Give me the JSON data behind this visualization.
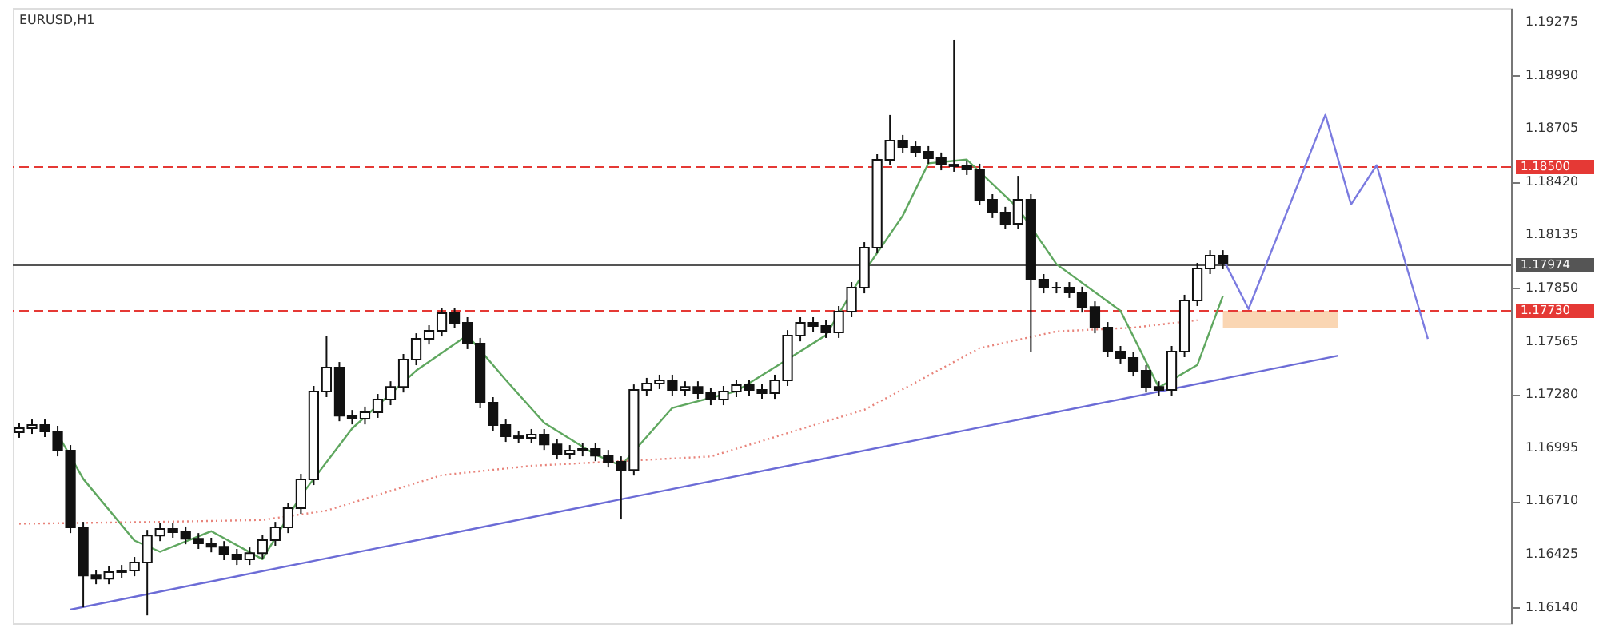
{
  "chart_data": {
    "type": "candlestick",
    "title": "EURUSD,H1",
    "color": "#111111",
    "grid": false,
    "tick_labels": "y",
    "categories": [
      null,
      null,
      null,
      null,
      null,
      null,
      null,
      null,
      null,
      null,
      null,
      null,
      null,
      null,
      null,
      null,
      null,
      null,
      null,
      null,
      null,
      null,
      null,
      null,
      null,
      null,
      null,
      null,
      null,
      null,
      null,
      null,
      null,
      null,
      null,
      null,
      null,
      null,
      null,
      null,
      null,
      null,
      null,
      null,
      null,
      null,
      null,
      null,
      null,
      null,
      null,
      null,
      null,
      null,
      null,
      null,
      null,
      null,
      null,
      null,
      null,
      null,
      null,
      null,
      null,
      null,
      null,
      null,
      null,
      null,
      null,
      null,
      null,
      null,
      null,
      null,
      null,
      null,
      null,
      null,
      null,
      null,
      null,
      null,
      null,
      null,
      null,
      null,
      null,
      null,
      null,
      null,
      null,
      null,
      null,
      null,
      null,
      null,
      null,
      null,
      null,
      null,
      null,
      null,
      null,
      null,
      null,
      null,
      null,
      null,
      null,
      null,
      null,
      null,
      null,
      null,
      null
    ],
    "ylim": [
      1.16057,
      1.19352
    ],
    "yticks": [
      {
        "value": 1.1614,
        "label": "1.16140"
      },
      1.16425,
      {
        "value": 1.1671,
        "label": "1.16710"
      },
      1.16995,
      {
        "value": 1.1728,
        "label": "1.17280"
      },
      1.17565,
      {
        "value": 1.1785,
        "label": "1.17850"
      },
      1.18135,
      {
        "value": 1.1842,
        "label": "1.18420"
      },
      1.18705,
      {
        "value": 1.1899,
        "label": "1.18990"
      },
      1.19275
    ],
    "ohlc": [
      [
        1.1708,
        1.17131,
        1.1705,
        1.17101
      ],
      [
        1.17101,
        1.17148,
        1.17071,
        1.17118
      ],
      [
        1.17118,
        1.17148,
        1.17054,
        1.17084
      ],
      [
        1.17084,
        1.17114,
        1.16951,
        1.16981
      ],
      [
        1.16981,
        1.17011,
        1.1654,
        1.1657
      ],
      [
        1.1657,
        1.166,
        1.16142,
        1.16313
      ],
      [
        1.16313,
        1.16343,
        1.16266,
        1.16296
      ],
      [
        1.16296,
        1.16361,
        1.16266,
        1.16331
      ],
      [
        1.16331,
        1.16369,
        1.16301,
        1.16339
      ],
      [
        1.16339,
        1.16412,
        1.16309,
        1.16382
      ],
      [
        1.16382,
        1.16557,
        1.16099,
        1.16527
      ],
      [
        1.16527,
        1.16592,
        1.16497,
        1.16562
      ],
      [
        1.16562,
        1.16592,
        1.16515,
        1.16545
      ],
      [
        1.16545,
        1.16575,
        1.1648,
        1.1651
      ],
      [
        1.1651,
        1.1654,
        1.16455,
        1.16485
      ],
      [
        1.16485,
        1.16515,
        1.16437,
        1.16467
      ],
      [
        1.16467,
        1.16497,
        1.16395,
        1.16425
      ],
      [
        1.16425,
        1.16455,
        1.16369,
        1.16399
      ],
      [
        1.16399,
        1.16463,
        1.16369,
        1.16433
      ],
      [
        1.16433,
        1.16532,
        1.16403,
        1.16502
      ],
      [
        1.16502,
        1.166,
        1.16472,
        1.1657
      ],
      [
        1.1657,
        1.16703,
        1.1654,
        1.16673
      ],
      [
        1.16673,
        1.16857,
        1.16643,
        1.16827
      ],
      [
        1.16827,
        1.17328,
        1.16797,
        1.17298
      ],
      [
        1.17298,
        1.17597,
        1.17268,
        1.17426
      ],
      [
        1.17426,
        1.17456,
        1.17139,
        1.17169
      ],
      [
        1.17169,
        1.17199,
        1.17122,
        1.17152
      ],
      [
        1.17152,
        1.17217,
        1.17122,
        1.17187
      ],
      [
        1.17187,
        1.17285,
        1.17157,
        1.17255
      ],
      [
        1.17255,
        1.17353,
        1.17225,
        1.17323
      ],
      [
        1.17323,
        1.17499,
        1.17293,
        1.17469
      ],
      [
        1.17469,
        1.1761,
        1.17439,
        1.1758
      ],
      [
        1.1758,
        1.17653,
        1.1755,
        1.17623
      ],
      [
        1.17623,
        1.17747,
        1.17593,
        1.17717
      ],
      [
        1.17717,
        1.17747,
        1.17636,
        1.17666
      ],
      [
        1.17666,
        1.17696,
        1.17525,
        1.17555
      ],
      [
        1.17555,
        1.17585,
        1.17208,
        1.17238
      ],
      [
        1.17238,
        1.17268,
        1.17088,
        1.17118
      ],
      [
        1.17118,
        1.17148,
        1.17028,
        1.17058
      ],
      [
        1.17058,
        1.17088,
        1.1702,
        1.1705
      ],
      [
        1.1705,
        1.17097,
        1.1702,
        1.17067
      ],
      [
        1.17067,
        1.17097,
        1.16985,
        1.17015
      ],
      [
        1.17015,
        1.17045,
        1.16934,
        1.16964
      ],
      [
        1.16964,
        1.17011,
        1.16934,
        1.16981
      ],
      [
        1.16981,
        1.1702,
        1.16951,
        1.1699
      ],
      [
        1.1699,
        1.1702,
        1.16925,
        1.16955
      ],
      [
        1.16955,
        1.16985,
        1.16891,
        1.16921
      ],
      [
        1.16921,
        1.16951,
        1.16613,
        1.16878
      ],
      [
        1.16878,
        1.17336,
        1.16848,
        1.17306
      ],
      [
        1.17306,
        1.17371,
        1.17276,
        1.17341
      ],
      [
        1.17341,
        1.17388,
        1.17311,
        1.17358
      ],
      [
        1.17358,
        1.17388,
        1.17276,
        1.17306
      ],
      [
        1.17306,
        1.17353,
        1.17276,
        1.17323
      ],
      [
        1.17323,
        1.17353,
        1.17259,
        1.17289
      ],
      [
        1.17289,
        1.17319,
        1.17225,
        1.17255
      ],
      [
        1.17255,
        1.17328,
        1.17225,
        1.17298
      ],
      [
        1.17298,
        1.17362,
        1.17268,
        1.17332
      ],
      [
        1.17332,
        1.17362,
        1.17276,
        1.17306
      ],
      [
        1.17306,
        1.17336,
        1.17259,
        1.17289
      ],
      [
        1.17289,
        1.17388,
        1.17259,
        1.17358
      ],
      [
        1.17358,
        1.17627,
        1.17328,
        1.17597
      ],
      [
        1.17597,
        1.17696,
        1.17567,
        1.17666
      ],
      [
        1.17666,
        1.17696,
        1.17619,
        1.17649
      ],
      [
        1.17649,
        1.17679,
        1.17585,
        1.17615
      ],
      [
        1.17615,
        1.17756,
        1.17585,
        1.17726
      ],
      [
        1.17726,
        1.17884,
        1.17696,
        1.17854
      ],
      [
        1.17854,
        1.18098,
        1.17824,
        1.18068
      ],
      [
        1.18068,
        1.18569,
        1.18038,
        1.18539
      ],
      [
        1.18539,
        1.18779,
        1.18509,
        1.18642
      ],
      [
        1.18642,
        1.18672,
        1.18577,
        1.18607
      ],
      [
        1.18607,
        1.18637,
        1.18552,
        1.18582
      ],
      [
        1.18582,
        1.18612,
        1.18518,
        1.18548
      ],
      [
        1.18548,
        1.18578,
        1.18483,
        1.18513
      ],
      [
        1.18513,
        1.19181,
        1.18475,
        1.18505
      ],
      [
        1.18505,
        1.18535,
        1.18458,
        1.18488
      ],
      [
        1.18488,
        1.18518,
        1.18295,
        1.18325
      ],
      [
        1.18325,
        1.18355,
        1.18227,
        1.18257
      ],
      [
        1.18257,
        1.18287,
        1.18167,
        1.18197
      ],
      [
        1.18197,
        1.18453,
        1.18167,
        1.18325
      ],
      [
        1.18325,
        1.18355,
        1.17512,
        1.17897
      ],
      [
        1.17897,
        1.17927,
        1.17824,
        1.17854
      ],
      [
        1.17854,
        1.17884,
        1.17824,
        1.17854
      ],
      [
        1.17854,
        1.17884,
        1.17799,
        1.17829
      ],
      [
        1.17829,
        1.17859,
        1.17721,
        1.17751
      ],
      [
        1.17751,
        1.17781,
        1.1761,
        1.1764
      ],
      [
        1.1764,
        1.1767,
        1.17482,
        1.17512
      ],
      [
        1.17512,
        1.17542,
        1.17448,
        1.17478
      ],
      [
        1.17478,
        1.17508,
        1.17379,
        1.17409
      ],
      [
        1.17409,
        1.17439,
        1.17293,
        1.17323
      ],
      [
        1.17323,
        1.17353,
        1.17276,
        1.17306
      ],
      [
        1.17306,
        1.17542,
        1.17276,
        1.17512
      ],
      [
        1.17512,
        1.17816,
        1.17482,
        1.17786
      ],
      [
        1.17786,
        1.17987,
        1.17756,
        1.17957
      ],
      [
        1.17957,
        1.18055,
        1.17927,
        1.18025
      ],
      [
        1.18025,
        1.18055,
        1.17953,
        1.17983
      ],
      null,
      null,
      null,
      null,
      null,
      null,
      null,
      null,
      null,
      null,
      null,
      null,
      null,
      null,
      null,
      null,
      null,
      null,
      null,
      null,
      null,
      null
    ],
    "series": [
      {
        "type": "line",
        "color": "#5fa75f",
        "line_style": "solid",
        "values": [
          null,
          null,
          null,
          1.1707,
          null,
          1.1683,
          null,
          null,
          null,
          1.165,
          null,
          1.1644,
          null,
          null,
          null,
          1.1655,
          null,
          null,
          null,
          1.164,
          null,
          null,
          1.1674,
          null,
          null,
          null,
          1.171,
          null,
          null,
          null,
          null,
          1.1741,
          null,
          null,
          null,
          1.176,
          null,
          null,
          1.1736,
          null,
          null,
          1.1713,
          null,
          null,
          null,
          1.1696,
          null,
          1.169,
          null,
          null,
          null,
          1.1721,
          null,
          null,
          null,
          null,
          1.173,
          null,
          null,
          null,
          1.1747,
          null,
          null,
          1.176,
          null,
          null,
          1.1794,
          null,
          null,
          1.1824,
          null,
          1.1852,
          null,
          null,
          1.1854,
          null,
          null,
          null,
          1.1828,
          null,
          null,
          1.1798,
          null,
          null,
          null,
          null,
          1.1773,
          null,
          null,
          1.1732,
          null,
          null,
          1.1744,
          null,
          1.1781,
          null,
          null,
          null,
          null,
          null,
          null,
          null,
          null,
          null,
          null,
          null,
          null,
          null,
          null,
          null,
          null,
          null,
          null,
          null,
          null,
          null,
          null
        ]
      },
      {
        "type": "line",
        "color": "#e8837a",
        "line_style": "dotted",
        "values": [
          1.1659,
          null,
          null,
          null,
          null,
          null,
          null,
          null,
          null,
          null,
          null,
          1.166,
          null,
          null,
          null,
          null,
          null,
          null,
          null,
          1.1661,
          null,
          null,
          null,
          null,
          1.1666,
          null,
          null,
          null,
          null,
          null,
          null,
          null,
          null,
          1.1685,
          null,
          null,
          null,
          null,
          null,
          null,
          1.169,
          null,
          null,
          null,
          null,
          null,
          null,
          null,
          null,
          null,
          null,
          null,
          null,
          null,
          1.1695,
          null,
          null,
          null,
          null,
          null,
          null,
          null,
          null,
          null,
          null,
          null,
          1.172,
          null,
          null,
          null,
          null,
          null,
          null,
          null,
          null,
          1.1753,
          null,
          null,
          null,
          null,
          null,
          1.1762,
          null,
          null,
          null,
          null,
          null,
          1.1764,
          null,
          null,
          null,
          null,
          1.1768,
          null,
          null,
          null,
          null,
          null,
          null,
          null,
          null,
          null,
          null,
          null,
          null,
          null,
          null,
          null,
          null,
          null,
          null,
          null,
          null,
          null,
          null,
          null,
          null
        ]
      },
      {
        "type": "line",
        "color": "#6b6bd6",
        "line_style": "solid",
        "values": [
          null,
          null,
          null,
          null,
          1.1613,
          null,
          null,
          null,
          null,
          null,
          null,
          null,
          null,
          null,
          null,
          null,
          null,
          null,
          null,
          null,
          null,
          null,
          null,
          null,
          null,
          null,
          null,
          null,
          null,
          null,
          null,
          null,
          null,
          null,
          null,
          null,
          null,
          null,
          null,
          null,
          null,
          null,
          null,
          null,
          null,
          null,
          null,
          null,
          null,
          null,
          null,
          null,
          null,
          null,
          null,
          null,
          null,
          null,
          null,
          null,
          null,
          null,
          null,
          null,
          null,
          null,
          null,
          null,
          null,
          null,
          null,
          null,
          null,
          null,
          null,
          null,
          null,
          null,
          null,
          null,
          null,
          null,
          null,
          null,
          null,
          null,
          null,
          null,
          null,
          null,
          null,
          null,
          null,
          null,
          null,
          null,
          null,
          null,
          null,
          null,
          null,
          null,
          null,
          1.1749,
          null,
          null,
          null,
          null,
          null,
          null,
          null,
          null,
          null,
          null,
          null,
          null,
          null
        ]
      },
      {
        "type": "line",
        "color": "#7b7be0",
        "line_style": "solid",
        "values": [
          null,
          null,
          null,
          null,
          null,
          null,
          null,
          null,
          null,
          null,
          null,
          null,
          null,
          null,
          null,
          null,
          null,
          null,
          null,
          null,
          null,
          null,
          null,
          null,
          null,
          null,
          null,
          null,
          null,
          null,
          null,
          null,
          null,
          null,
          null,
          null,
          null,
          null,
          null,
          null,
          null,
          null,
          null,
          null,
          null,
          null,
          null,
          null,
          null,
          null,
          null,
          null,
          null,
          null,
          null,
          null,
          null,
          null,
          null,
          null,
          null,
          null,
          null,
          null,
          null,
          null,
          null,
          null,
          null,
          null,
          null,
          null,
          null,
          null,
          null,
          null,
          null,
          null,
          null,
          null,
          null,
          null,
          null,
          null,
          null,
          null,
          null,
          null,
          null,
          null,
          null,
          null,
          null,
          null,
          1.1801,
          null,
          1.1774,
          null,
          null,
          null,
          null,
          null,
          1.1878,
          null,
          1.183,
          null,
          1.1851,
          null,
          null,
          null,
          1.1758,
          null,
          null,
          null,
          null,
          null,
          null
        ]
      }
    ],
    "ref_lines": [
      {
        "axis": "y",
        "value": 1.185,
        "label": "1.18500",
        "color": "#e53935",
        "line_style": "dashed"
      },
      {
        "axis": "y",
        "value": 1.1773,
        "label": "1.17730",
        "color": "#e53935",
        "line_style": "dashed"
      },
      {
        "axis": "y",
        "value": 1.17974,
        "label": "1.17974",
        "color": "#555555",
        "line_style": "solid"
      }
    ],
    "bands": [
      {
        "axis": "y",
        "from": 1.1764,
        "to": 1.1773,
        "color": "#f9cfa6"
      }
    ]
  }
}
